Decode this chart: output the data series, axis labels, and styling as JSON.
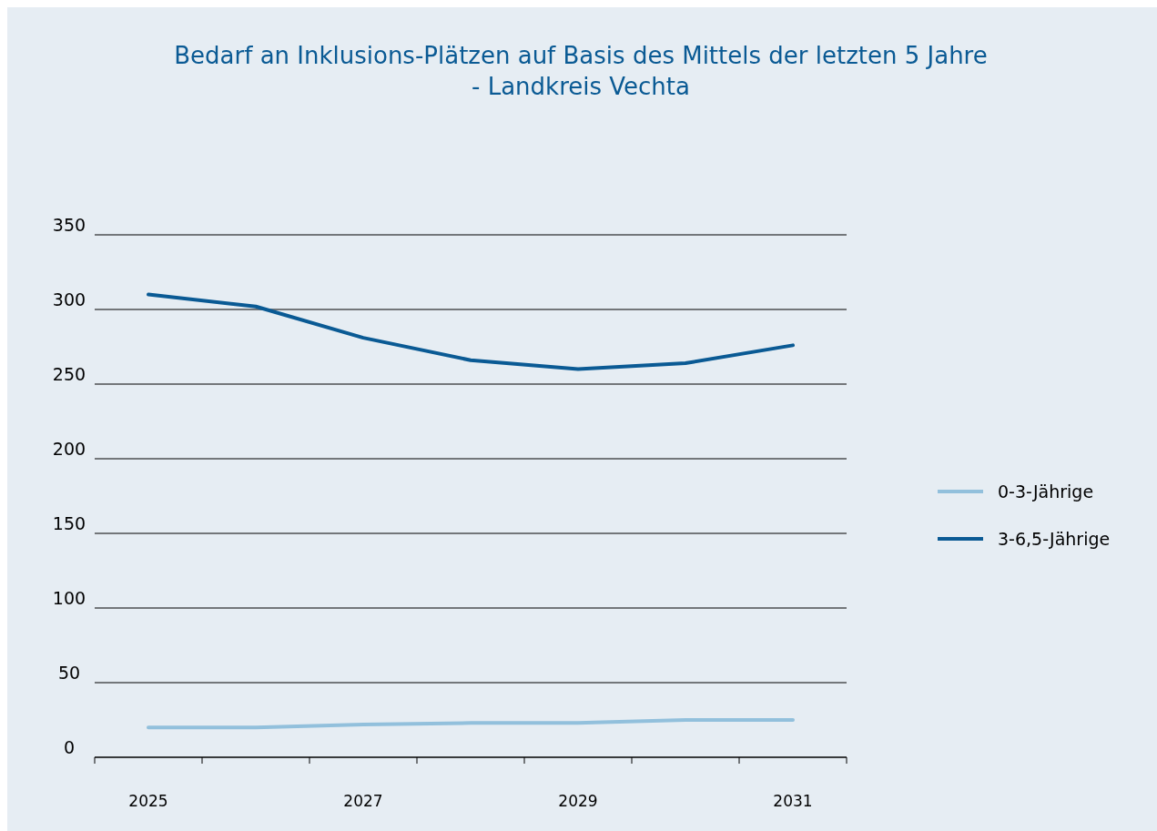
{
  "chart_data": {
    "type": "line",
    "title": "Bedarf an Inklusions-Plätzen auf Basis des Mittels der letzten 5 Jahre\n- Landkreis Vechta",
    "categories": [
      "2025",
      null,
      "2027",
      null,
      "2029",
      null,
      "2031"
    ],
    "series": [
      {
        "name": "0-3-Jährige",
        "color": "#92c0dc",
        "values": [
          20,
          20,
          22,
          23,
          23,
          25,
          25
        ]
      },
      {
        "name": "3-6,5-Jährige",
        "color": "#0a5a94",
        "values": [
          310,
          302,
          281,
          266,
          260,
          264,
          276
        ]
      }
    ],
    "ylim": [
      0,
      350
    ],
    "yticks": [
      0,
      50,
      100,
      150,
      200,
      250,
      300,
      350
    ],
    "grid": "y",
    "legend": "right",
    "marker": "none",
    "line_style": "solid"
  }
}
